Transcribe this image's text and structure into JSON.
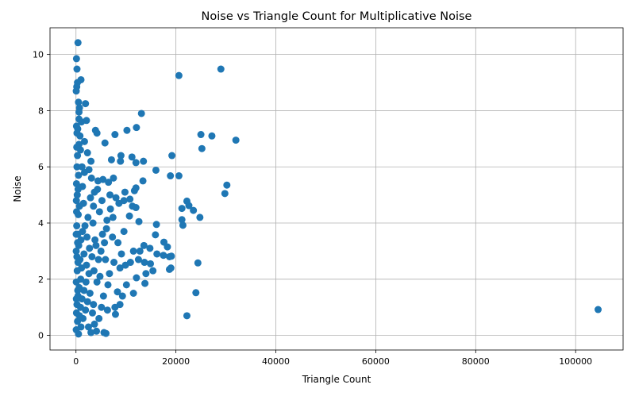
{
  "chart_data": {
    "type": "scatter",
    "title": "Noise vs Triangle Count for Multiplicative Noise",
    "xlabel": "Triangle Count",
    "ylabel": "Noise",
    "xlim": [
      -5200,
      109500
    ],
    "ylim": [
      -0.52,
      10.95
    ],
    "xticks": [
      0,
      20000,
      40000,
      60000,
      80000,
      100000
    ],
    "xtick_labels": [
      "0",
      "20000",
      "40000",
      "60000",
      "80000",
      "100000"
    ],
    "yticks": [
      0,
      2,
      4,
      6,
      8,
      10
    ],
    "ytick_labels": [
      "0",
      "2",
      "4",
      "6",
      "8",
      "10"
    ],
    "grid": true,
    "legend": "none",
    "marker_color": "#1f77b4",
    "points": [
      [
        400,
        10.42
      ],
      [
        100,
        9.85
      ],
      [
        200,
        9.48
      ],
      [
        1000,
        9.1
      ],
      [
        300,
        9.0
      ],
      [
        150,
        8.85
      ],
      [
        50,
        8.7
      ],
      [
        1900,
        8.25
      ],
      [
        500,
        8.3
      ],
      [
        700,
        8.1
      ],
      [
        600,
        7.95
      ],
      [
        2100,
        7.65
      ],
      [
        100,
        7.45
      ],
      [
        350,
        7.35
      ],
      [
        13100,
        7.9
      ],
      [
        20600,
        9.25
      ],
      [
        29000,
        9.48
      ],
      [
        3900,
        7.3
      ],
      [
        4200,
        7.2
      ],
      [
        7800,
        7.15
      ],
      [
        10200,
        7.3
      ],
      [
        12100,
        7.4
      ],
      [
        25000,
        7.15
      ],
      [
        27200,
        7.1
      ],
      [
        32000,
        6.95
      ],
      [
        5800,
        6.85
      ],
      [
        25200,
        6.65
      ],
      [
        19200,
        6.4
      ],
      [
        9000,
        6.4
      ],
      [
        11200,
        6.35
      ],
      [
        7100,
        6.25
      ],
      [
        8900,
        6.2
      ],
      [
        12000,
        6.15
      ],
      [
        13500,
        6.2
      ],
      [
        16000,
        5.88
      ],
      [
        18900,
        5.68
      ],
      [
        20600,
        5.68
      ],
      [
        30200,
        5.35
      ],
      [
        29800,
        5.05
      ],
      [
        13400,
        5.5
      ],
      [
        11700,
        5.15
      ],
      [
        9800,
        5.1
      ],
      [
        12000,
        5.25
      ],
      [
        10800,
        4.85
      ],
      [
        22200,
        4.78
      ],
      [
        22600,
        4.62
      ],
      [
        21200,
        4.52
      ],
      [
        23500,
        4.45
      ],
      [
        24800,
        4.2
      ],
      [
        21200,
        4.12
      ],
      [
        21400,
        3.92
      ],
      [
        16100,
        3.95
      ],
      [
        10700,
        4.25
      ],
      [
        12600,
        4.05
      ],
      [
        11300,
        4.6
      ],
      [
        12000,
        4.55
      ],
      [
        9600,
        4.8
      ],
      [
        6800,
        5.0
      ],
      [
        7500,
        5.6
      ],
      [
        6500,
        5.45
      ],
      [
        5400,
        5.55
      ],
      [
        15900,
        3.58
      ],
      [
        17600,
        3.32
      ],
      [
        18300,
        3.15
      ],
      [
        14800,
        3.1
      ],
      [
        13600,
        3.2
      ],
      [
        12800,
        3.0
      ],
      [
        11500,
        3.0
      ],
      [
        16200,
        2.9
      ],
      [
        17500,
        2.85
      ],
      [
        18700,
        2.8
      ],
      [
        19100,
        2.82
      ],
      [
        14900,
        2.55
      ],
      [
        13700,
        2.6
      ],
      [
        12500,
        2.7
      ],
      [
        10900,
        2.6
      ],
      [
        9900,
        2.5
      ],
      [
        8800,
        2.4
      ],
      [
        15400,
        2.3
      ],
      [
        14000,
        2.2
      ],
      [
        18700,
        2.35
      ],
      [
        19000,
        2.4
      ],
      [
        24400,
        2.58
      ],
      [
        12100,
        2.05
      ],
      [
        13800,
        1.85
      ],
      [
        11500,
        1.5
      ],
      [
        10100,
        1.8
      ],
      [
        9300,
        1.4
      ],
      [
        8300,
        1.55
      ],
      [
        24000,
        1.52
      ],
      [
        22200,
        0.7
      ],
      [
        104500,
        0.92
      ],
      [
        8800,
        1.1
      ],
      [
        7900,
        0.75
      ],
      [
        6300,
        0.9
      ],
      [
        5600,
        0.1
      ],
      [
        6000,
        0.07
      ],
      [
        7800,
        1.0
      ],
      [
        9600,
        3.7
      ],
      [
        7300,
        3.5
      ],
      [
        8400,
        3.3
      ],
      [
        6100,
        3.8
      ],
      [
        5300,
        3.6
      ],
      [
        9100,
        2.9
      ],
      [
        7600,
        2.6
      ],
      [
        6700,
        2.2
      ],
      [
        5900,
        2.7
      ],
      [
        4800,
        2.1
      ],
      [
        4200,
        1.9
      ],
      [
        3600,
        2.3
      ],
      [
        4700,
        4.4
      ],
      [
        3500,
        4.6
      ],
      [
        2900,
        4.9
      ],
      [
        4300,
        5.2
      ],
      [
        3100,
        5.6
      ],
      [
        2600,
        5.9
      ],
      [
        3800,
        3.4
      ],
      [
        2700,
        3.1
      ],
      [
        3200,
        2.8
      ],
      [
        2200,
        3.5
      ],
      [
        1800,
        3.9
      ],
      [
        2400,
        4.2
      ],
      [
        1500,
        4.7
      ],
      [
        1300,
        5.3
      ],
      [
        1700,
        5.8
      ],
      [
        900,
        6.6
      ],
      [
        800,
        7.1
      ],
      [
        1200,
        6.0
      ],
      [
        600,
        6.8
      ],
      [
        300,
        6.4
      ],
      [
        200,
        6.0
      ],
      [
        500,
        5.7
      ],
      [
        100,
        5.4
      ],
      [
        250,
        5.0
      ],
      [
        700,
        4.6
      ],
      [
        450,
        4.3
      ],
      [
        150,
        3.9
      ],
      [
        350,
        3.6
      ],
      [
        550,
        3.2
      ],
      [
        50,
        3.0
      ],
      [
        800,
        2.7
      ],
      [
        1100,
        2.4
      ],
      [
        950,
        2.0
      ],
      [
        650,
        1.7
      ],
      [
        400,
        1.4
      ],
      [
        200,
        1.1
      ],
      [
        100,
        0.8
      ],
      [
        300,
        0.5
      ],
      [
        50,
        0.2
      ],
      [
        500,
        0.05
      ],
      [
        1000,
        0.3
      ],
      [
        1400,
        0.6
      ],
      [
        1900,
        0.9
      ],
      [
        2300,
        1.2
      ],
      [
        2800,
        1.5
      ],
      [
        3300,
        0.8
      ],
      [
        3700,
        0.4
      ],
      [
        4100,
        0.15
      ],
      [
        4600,
        0.6
      ],
      [
        5100,
        1.0
      ],
      [
        5500,
        1.4
      ],
      [
        6400,
        1.8
      ],
      [
        2000,
        1.9
      ],
      [
        1600,
        1.6
      ],
      [
        1200,
        1.3
      ],
      [
        900,
        1.0
      ],
      [
        700,
        0.7
      ],
      [
        2500,
        0.3
      ],
      [
        3000,
        0.1
      ],
      [
        3500,
        1.1
      ],
      [
        1000,
        3.4
      ],
      [
        1300,
        3.7
      ],
      [
        1600,
        2.9
      ],
      [
        2100,
        2.5
      ],
      [
        2600,
        2.2
      ],
      [
        3400,
        4.0
      ],
      [
        4000,
        3.2
      ],
      [
        4500,
        2.7
      ],
      [
        5000,
        3.0
      ],
      [
        5700,
        3.3
      ],
      [
        6200,
        4.1
      ],
      [
        6900,
        4.5
      ],
      [
        7400,
        4.2
      ],
      [
        8000,
        4.9
      ],
      [
        8600,
        4.7
      ],
      [
        5200,
        4.8
      ],
      [
        4400,
        5.5
      ],
      [
        3700,
        5.1
      ],
      [
        3000,
        6.2
      ],
      [
        2300,
        6.5
      ],
      [
        1700,
        6.9
      ],
      [
        1100,
        7.6
      ],
      [
        600,
        7.7
      ],
      [
        200,
        7.2
      ],
      [
        150,
        6.7
      ],
      [
        400,
        2.6
      ],
      [
        250,
        2.3
      ],
      [
        60,
        1.9
      ],
      [
        350,
        1.6
      ],
      [
        80,
        1.3
      ],
      [
        120,
        4.4
      ],
      [
        80,
        4.8
      ],
      [
        420,
        5.2
      ],
      [
        320,
        3.3
      ],
      [
        180,
        2.8
      ],
      [
        50,
        3.6
      ]
    ]
  }
}
